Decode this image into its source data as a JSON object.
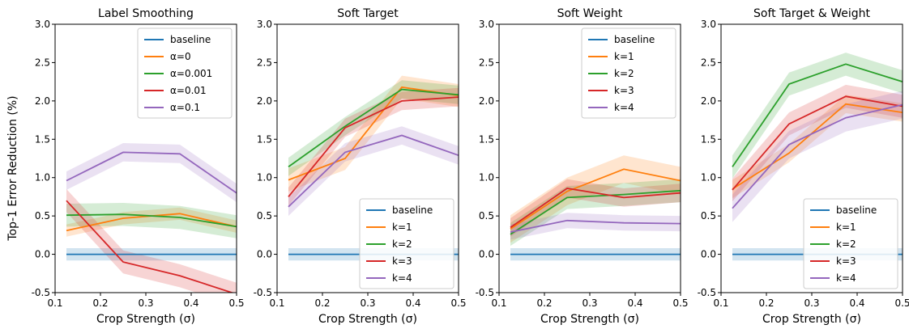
{
  "figure": {
    "ylabel": "Top-1 Error Reduction (%)"
  },
  "chart_data": [
    {
      "type": "line",
      "title": "Label Smoothing",
      "xlabel": "Crop Strength (σ)",
      "ylabel": "Top-1 Error Reduction (%)",
      "xlim": [
        0.1,
        0.5
      ],
      "ylim": [
        -0.5,
        3.0
      ],
      "xticks": [
        "0.1",
        "0.2",
        "0.3",
        "0.4",
        "0.5"
      ],
      "yticks": [
        "-0.5",
        "0.0",
        "0.5",
        "1.0",
        "1.5",
        "2.0",
        "2.5",
        "3.0"
      ],
      "legend_position": "top-right",
      "x": [
        0.125,
        0.25,
        0.375,
        0.5
      ],
      "series": [
        {
          "name": "baseline",
          "color": "#1f77b4",
          "values": [
            0.0,
            0.0,
            0.0,
            0.0
          ],
          "band": 0.08
        },
        {
          "name": "α=0",
          "color": "#ff7f0e",
          "values": [
            0.31,
            0.47,
            0.53,
            0.36
          ],
          "band": 0.08
        },
        {
          "name": "α=0.001",
          "color": "#2ca02c",
          "values": [
            0.51,
            0.52,
            0.48,
            0.36
          ],
          "band": 0.15
        },
        {
          "name": "α=0.01",
          "color": "#d62728",
          "values": [
            0.7,
            -0.1,
            -0.28,
            -0.52
          ],
          "band": 0.15
        },
        {
          "name": "α=0.1",
          "color": "#9467bd",
          "values": [
            0.96,
            1.33,
            1.31,
            0.8
          ],
          "band": 0.12
        }
      ]
    },
    {
      "type": "line",
      "title": "Soft Target",
      "xlabel": "Crop Strength (σ)",
      "xlim": [
        0.1,
        0.5
      ],
      "ylim": [
        -0.5,
        3.0
      ],
      "xticks": [
        "0.1",
        "0.2",
        "0.3",
        "0.4",
        "0.5"
      ],
      "yticks": [
        "-0.5",
        "0.0",
        "0.5",
        "1.0",
        "1.5",
        "2.0",
        "2.5",
        "3.0"
      ],
      "legend_position": "bottom-right",
      "x": [
        0.125,
        0.25,
        0.375,
        0.5
      ],
      "series": [
        {
          "name": "baseline",
          "color": "#1f77b4",
          "values": [
            0.0,
            0.0,
            0.0,
            0.0
          ],
          "band": 0.08
        },
        {
          "name": "k=1",
          "color": "#ff7f0e",
          "values": [
            0.97,
            1.25,
            2.18,
            2.07
          ],
          "band": 0.15
        },
        {
          "name": "k=2",
          "color": "#2ca02c",
          "values": [
            1.14,
            1.67,
            2.15,
            2.08
          ],
          "band": 0.12
        },
        {
          "name": "k=3",
          "color": "#d62728",
          "values": [
            0.75,
            1.65,
            2.0,
            2.05
          ],
          "band": 0.12
        },
        {
          "name": "k=4",
          "color": "#9467bd",
          "values": [
            0.62,
            1.33,
            1.55,
            1.29
          ],
          "band": 0.12
        }
      ]
    },
    {
      "type": "line",
      "title": "Soft Weight",
      "xlabel": "Crop Strength (σ)",
      "xlim": [
        0.1,
        0.5
      ],
      "ylim": [
        -0.5,
        3.0
      ],
      "xticks": [
        "0.1",
        "0.2",
        "0.3",
        "0.4",
        "0.5"
      ],
      "yticks": [
        "-0.5",
        "0.0",
        "0.5",
        "1.0",
        "1.5",
        "2.0",
        "2.5",
        "3.0"
      ],
      "legend_position": "top-right",
      "x": [
        0.125,
        0.25,
        0.375,
        0.5
      ],
      "series": [
        {
          "name": "baseline",
          "color": "#1f77b4",
          "values": [
            0.0,
            0.0,
            0.0,
            0.0
          ],
          "band": 0.08
        },
        {
          "name": "k=1",
          "color": "#ff7f0e",
          "values": [
            0.33,
            0.82,
            1.11,
            0.96
          ],
          "band": 0.18
        },
        {
          "name": "k=2",
          "color": "#2ca02c",
          "values": [
            0.26,
            0.74,
            0.78,
            0.83
          ],
          "band": 0.15
        },
        {
          "name": "k=3",
          "color": "#d62728",
          "values": [
            0.35,
            0.86,
            0.74,
            0.8
          ],
          "band": 0.12
        },
        {
          "name": "k=4",
          "color": "#9467bd",
          "values": [
            0.29,
            0.44,
            0.41,
            0.4
          ],
          "band": 0.1
        }
      ]
    },
    {
      "type": "line",
      "title": "Soft Target & Weight",
      "xlabel": "Crop Strength (σ)",
      "xlim": [
        0.1,
        0.5
      ],
      "ylim": [
        -0.5,
        3.0
      ],
      "xticks": [
        "0.1",
        "0.2",
        "0.3",
        "0.4",
        "0.5"
      ],
      "yticks": [
        "-0.5",
        "0.0",
        "0.5",
        "1.0",
        "1.5",
        "2.0",
        "2.5",
        "3.0"
      ],
      "legend_position": "bottom-right",
      "x": [
        0.125,
        0.25,
        0.375,
        0.5
      ],
      "series": [
        {
          "name": "baseline",
          "color": "#1f77b4",
          "values": [
            0.0,
            0.0,
            0.0,
            0.0
          ],
          "band": 0.08
        },
        {
          "name": "k=1",
          "color": "#ff7f0e",
          "values": [
            0.85,
            1.32,
            1.96,
            1.85
          ],
          "band": 0.12
        },
        {
          "name": "k=2",
          "color": "#2ca02c",
          "values": [
            1.14,
            2.22,
            2.48,
            2.25
          ],
          "band": 0.15
        },
        {
          "name": "k=3",
          "color": "#d62728",
          "values": [
            0.84,
            1.7,
            2.06,
            1.93
          ],
          "band": 0.15
        },
        {
          "name": "k=4",
          "color": "#9467bd",
          "values": [
            0.6,
            1.43,
            1.78,
            1.95
          ],
          "band": 0.18
        }
      ]
    }
  ]
}
